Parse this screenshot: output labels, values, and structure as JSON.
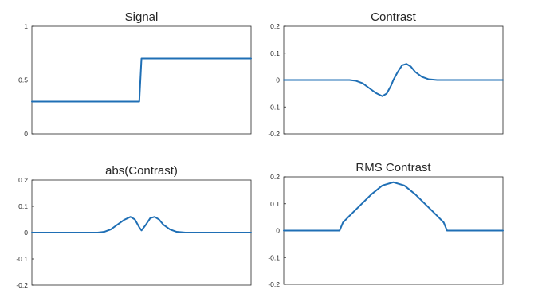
{
  "chart_data": [
    {
      "type": "line",
      "title": "Signal",
      "xlabel": "",
      "ylabel": "",
      "xlim": [
        0,
        1
      ],
      "ylim": [
        0,
        1
      ],
      "yticks": [
        0,
        0.5,
        1
      ],
      "ytick_labels": [
        "0",
        "0.5",
        "1"
      ],
      "color": "#1f6fb5",
      "series": [
        {
          "x": [
            0,
            0.49,
            0.5,
            1
          ],
          "y": [
            0.3,
            0.3,
            0.7,
            0.7
          ]
        }
      ]
    },
    {
      "type": "line",
      "title": "Contrast",
      "xlabel": "",
      "ylabel": "",
      "xlim": [
        0,
        1
      ],
      "ylim": [
        -0.2,
        0.2
      ],
      "yticks": [
        -0.2,
        -0.1,
        0,
        0.1,
        0.2
      ],
      "ytick_labels": [
        "-0.2",
        "-0.1",
        "0",
        "0.1",
        "0.2"
      ],
      "color": "#1f6fb5",
      "series": [
        {
          "x": [
            0,
            0.3,
            0.33,
            0.36,
            0.39,
            0.42,
            0.45,
            0.47,
            0.49,
            0.5,
            0.52,
            0.54,
            0.56,
            0.58,
            0.6,
            0.63,
            0.66,
            0.7,
            1
          ],
          "y": [
            0,
            0,
            -0.003,
            -0.012,
            -0.03,
            -0.048,
            -0.06,
            -0.05,
            -0.02,
            0,
            0.03,
            0.055,
            0.06,
            0.05,
            0.03,
            0.012,
            0.003,
            0,
            0
          ]
        }
      ]
    },
    {
      "type": "line",
      "title": "abs(Contrast)",
      "xlabel": "",
      "ylabel": "",
      "xlim": [
        0,
        1
      ],
      "ylim": [
        -0.2,
        0.2
      ],
      "yticks": [
        -0.2,
        -0.1,
        0,
        0.1,
        0.2
      ],
      "ytick_labels": [
        "-0.2",
        "-0.1",
        "0",
        "0.1",
        "0.2"
      ],
      "color": "#1f6fb5",
      "series": [
        {
          "x": [
            0,
            0.3,
            0.33,
            0.36,
            0.39,
            0.42,
            0.45,
            0.47,
            0.49,
            0.5,
            0.52,
            0.54,
            0.56,
            0.58,
            0.6,
            0.63,
            0.66,
            0.7,
            1
          ],
          "y": [
            0,
            0,
            0.003,
            0.012,
            0.03,
            0.048,
            0.06,
            0.05,
            0.02,
            0.008,
            0.03,
            0.055,
            0.06,
            0.05,
            0.03,
            0.012,
            0.003,
            0,
            0
          ]
        }
      ]
    },
    {
      "type": "line",
      "title": "RMS Contrast",
      "xlabel": "",
      "ylabel": "",
      "xlim": [
        0,
        1
      ],
      "ylim": [
        -0.2,
        0.2
      ],
      "yticks": [
        -0.2,
        -0.1,
        0,
        0.1,
        0.2
      ],
      "ytick_labels": [
        "-0.2",
        "-0.1",
        "0",
        "0.1",
        "0.2"
      ],
      "color": "#1f6fb5",
      "series": [
        {
          "x": [
            0,
            0.255,
            0.27,
            0.3,
            0.35,
            0.4,
            0.45,
            0.5,
            0.55,
            0.6,
            0.65,
            0.7,
            0.73,
            0.745,
            1
          ],
          "y": [
            0,
            0,
            0.03,
            0.055,
            0.095,
            0.135,
            0.168,
            0.18,
            0.168,
            0.135,
            0.095,
            0.055,
            0.03,
            0,
            0
          ]
        }
      ]
    }
  ]
}
